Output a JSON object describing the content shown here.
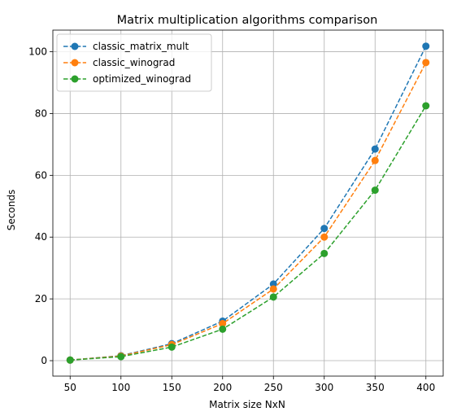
{
  "chart_data": {
    "type": "line",
    "title": "Matrix multiplication algorithms comparison",
    "xlabel": "Matrix size NxN",
    "ylabel": "Seconds",
    "x": [
      50,
      100,
      150,
      200,
      250,
      300,
      350,
      400
    ],
    "xticks": [
      50,
      100,
      150,
      200,
      250,
      300,
      350,
      400
    ],
    "yticks": [
      0,
      20,
      40,
      60,
      80,
      100
    ],
    "xlim": [
      33,
      417
    ],
    "ylim": [
      -5,
      107
    ],
    "grid": true,
    "legend_position": "upper-left",
    "line_style": "dashed",
    "marker": "circle",
    "series": [
      {
        "name": "classic_matrix_mult",
        "color": "#1f77b4",
        "values": [
          0.2,
          1.6,
          5.5,
          12.8,
          24.8,
          42.8,
          68.5,
          101.8
        ]
      },
      {
        "name": "classic_winograd",
        "color": "#ff7f0e",
        "values": [
          0.2,
          1.5,
          5.2,
          12.0,
          23.2,
          40.0,
          64.8,
          96.5
        ]
      },
      {
        "name": "optimized_winograd",
        "color": "#2ca02c",
        "values": [
          0.2,
          1.3,
          4.4,
          10.2,
          20.6,
          34.7,
          55.2,
          82.5
        ]
      }
    ]
  }
}
